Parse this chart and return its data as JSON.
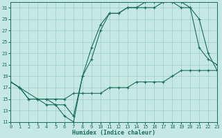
{
  "bg_color": "#c5e8e3",
  "line_color": "#1a6b5e",
  "grid_color": "#9eccc4",
  "xlabel": "Humidex (Indice chaleur)",
  "xlim": [
    0,
    23
  ],
  "ylim": [
    11,
    32
  ],
  "yticks": [
    11,
    13,
    15,
    17,
    19,
    21,
    23,
    25,
    27,
    29,
    31
  ],
  "xticks": [
    0,
    1,
    2,
    3,
    4,
    5,
    6,
    7,
    8,
    9,
    10,
    11,
    12,
    13,
    14,
    15,
    16,
    17,
    18,
    19,
    20,
    21,
    22,
    23
  ],
  "line1_x": [
    0,
    1,
    2,
    3,
    4,
    5,
    6,
    7,
    8,
    9,
    10,
    11,
    12,
    13,
    14,
    15,
    16,
    17,
    18,
    19,
    20,
    21,
    22,
    23
  ],
  "line1_y": [
    18,
    17,
    15,
    15,
    14,
    14,
    12,
    11,
    19,
    24,
    28,
    30,
    30,
    31,
    31,
    32,
    32,
    32,
    32,
    32,
    31,
    29,
    23,
    20
  ],
  "line2_x": [
    0,
    1,
    3,
    4,
    5,
    6,
    7,
    8,
    9,
    10,
    11,
    12,
    13,
    14,
    15,
    16,
    17,
    18,
    19,
    20,
    21,
    22,
    23
  ],
  "line2_y": [
    18,
    17,
    15,
    15,
    14,
    14,
    12,
    19,
    22,
    27,
    30,
    30,
    31,
    31,
    31,
    31,
    32,
    32,
    31,
    31,
    24,
    22,
    21
  ],
  "line3_x": [
    0,
    1,
    2,
    3,
    4,
    5,
    6,
    7,
    8,
    9,
    10,
    11,
    12,
    13,
    14,
    15,
    16,
    17,
    18,
    19,
    20,
    21,
    22,
    23
  ],
  "line3_y": [
    18,
    17,
    15,
    15,
    15,
    15,
    15,
    16,
    16,
    16,
    16,
    17,
    17,
    17,
    18,
    18,
    18,
    18,
    19,
    20,
    20,
    20,
    20,
    20
  ]
}
